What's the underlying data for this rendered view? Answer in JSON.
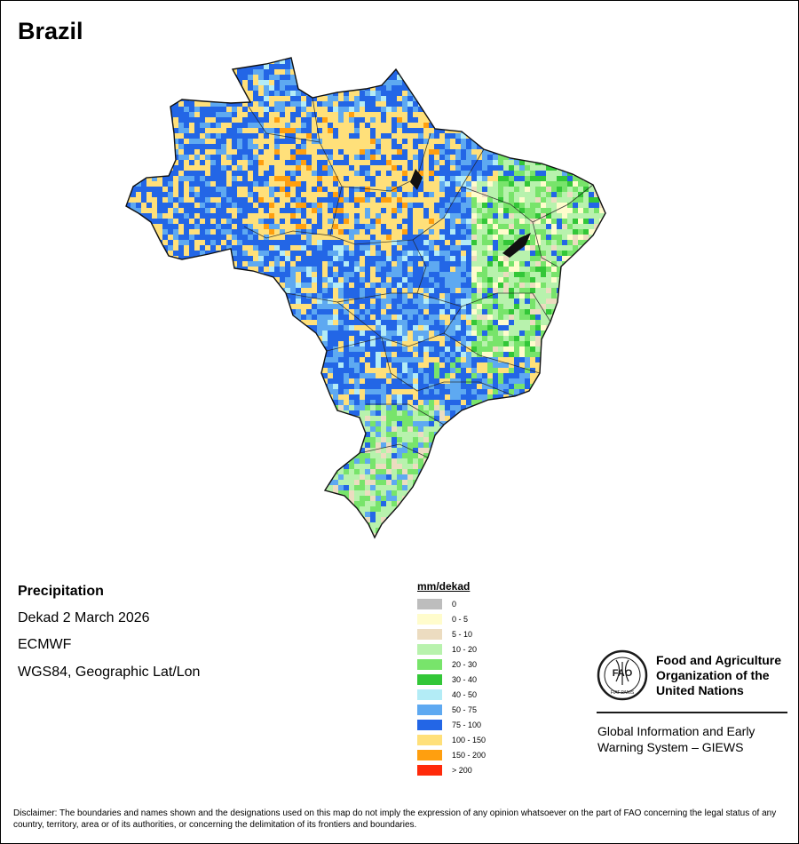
{
  "map_title": "Brazil",
  "info": {
    "variable": "Precipitation",
    "period": "Dekad 2 March 2026",
    "source": "ECMWF",
    "projection": "WGS84, Geographic Lat/Lon"
  },
  "legend": {
    "title": "mm/dekad",
    "items": [
      {
        "label": "0",
        "color": "#bdbdbd"
      },
      {
        "label": "0 - 5",
        "color": "#fffccc"
      },
      {
        "label": "5 - 10",
        "color": "#ecdcc0"
      },
      {
        "label": "10 - 20",
        "color": "#b8f2ad"
      },
      {
        "label": "20 - 30",
        "color": "#78e46b"
      },
      {
        "label": "30 - 40",
        "color": "#33c738"
      },
      {
        "label": "40 - 50",
        "color": "#b3ecf6"
      },
      {
        "label": "50 - 75",
        "color": "#5ea9f1"
      },
      {
        "label": "75 - 100",
        "color": "#2366e6"
      },
      {
        "label": "100 - 150",
        "color": "#ffe07a"
      },
      {
        "label": "150 - 200",
        "color": "#ff9f0f"
      },
      {
        "label": "> 200",
        "color": "#ff2a0a"
      }
    ]
  },
  "organization": {
    "logo_text": "FAO",
    "logo_motto": "FIAT PANIS",
    "name": "Food and Agriculture Organization of the United Nations",
    "program": "Global Information and Early Warning System – GIEWS"
  },
  "disclaimer": "Disclaimer: The boundaries and names shown and the designations used on this map do not imply the expression of any opinion whatsoever on the part of FAO concerning the legal status of any country, territory, area or of its authorities, or concerning the delimitation of its frontiers and boundaries."
}
